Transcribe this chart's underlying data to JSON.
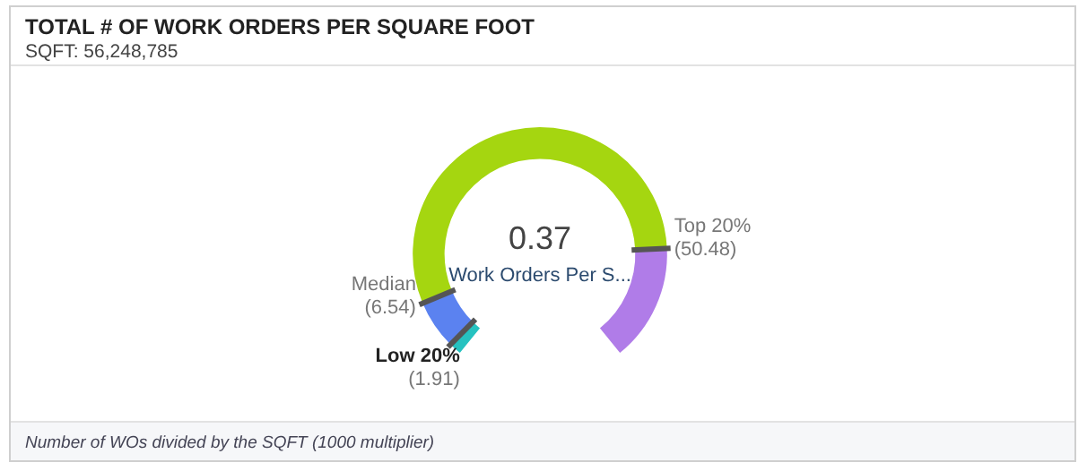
{
  "chart_data": {
    "type": "donut",
    "title": "TOTAL # OF WORK ORDERS PER SQUARE FOOT",
    "subtitle": "SQFT: 56,248,785",
    "categories": [
      null,
      null,
      null,
      null
    ],
    "values": [
      2,
      8,
      71,
      19
    ],
    "colors": [
      "#26c2c0",
      "#5b82f0",
      "#a5d610",
      "#b07ce8"
    ],
    "annotations": [
      "0.37",
      "Work Orders Per S...",
      "Low 20%\n(1.91)",
      "Median\n(6.54)",
      "Top 20%\n(50.48)",
      "Number of WOs divided by the SQFT (1000 multiplier)"
    ],
    "legend": false
  }
}
